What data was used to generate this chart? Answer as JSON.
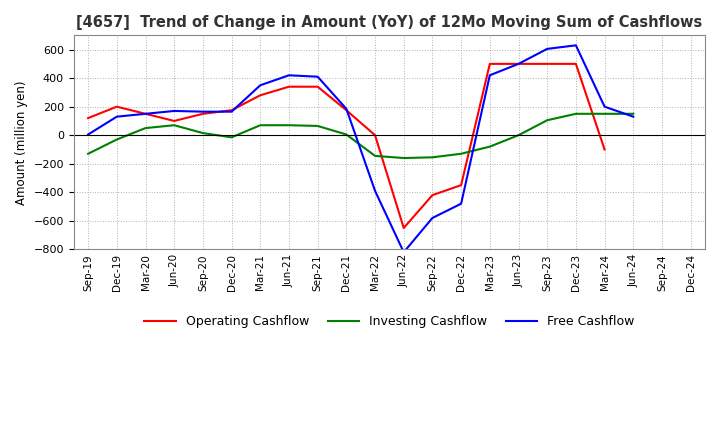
{
  "title": "[4657]  Trend of Change in Amount (YoY) of 12Mo Moving Sum of Cashflows",
  "ylabel": "Amount (million yen)",
  "x_labels": [
    "Sep-19",
    "Dec-19",
    "Mar-20",
    "Jun-20",
    "Sep-20",
    "Dec-20",
    "Mar-21",
    "Jun-21",
    "Sep-21",
    "Dec-21",
    "Mar-22",
    "Jun-22",
    "Sep-22",
    "Dec-22",
    "Mar-23",
    "Jun-23",
    "Sep-23",
    "Dec-23",
    "Mar-24",
    "Jun-24",
    "Sep-24",
    "Dec-24"
  ],
  "operating_cashflow": [
    120,
    200,
    150,
    100,
    150,
    175,
    280,
    340,
    340,
    175,
    null,
    -650,
    -420,
    -350,
    500,
    500,
    500,
    500,
    -100,
    null,
    null,
    null
  ],
  "investing_cashflow": [
    -130,
    -30,
    50,
    70,
    15,
    -15,
    70,
    70,
    65,
    5,
    -145,
    -160,
    -155,
    -130,
    -80,
    0,
    105,
    150,
    150,
    150,
    null,
    null
  ],
  "free_cashflow": [
    5,
    130,
    150,
    170,
    165,
    165,
    350,
    420,
    410,
    185,
    -390,
    -820,
    -580,
    -480,
    420,
    500,
    605,
    630,
    200,
    130,
    null,
    null
  ],
  "ylim": [
    -800,
    700
  ],
  "yticks": [
    -800,
    -600,
    -400,
    -200,
    0,
    200,
    400,
    600
  ],
  "line_colors": {
    "operating": "#ff0000",
    "investing": "#008000",
    "free": "#0000ff"
  },
  "legend_labels": [
    "Operating Cashflow",
    "Investing Cashflow",
    "Free Cashflow"
  ],
  "background_color": "#ffffff",
  "grid_color": "#b0b0b0"
}
